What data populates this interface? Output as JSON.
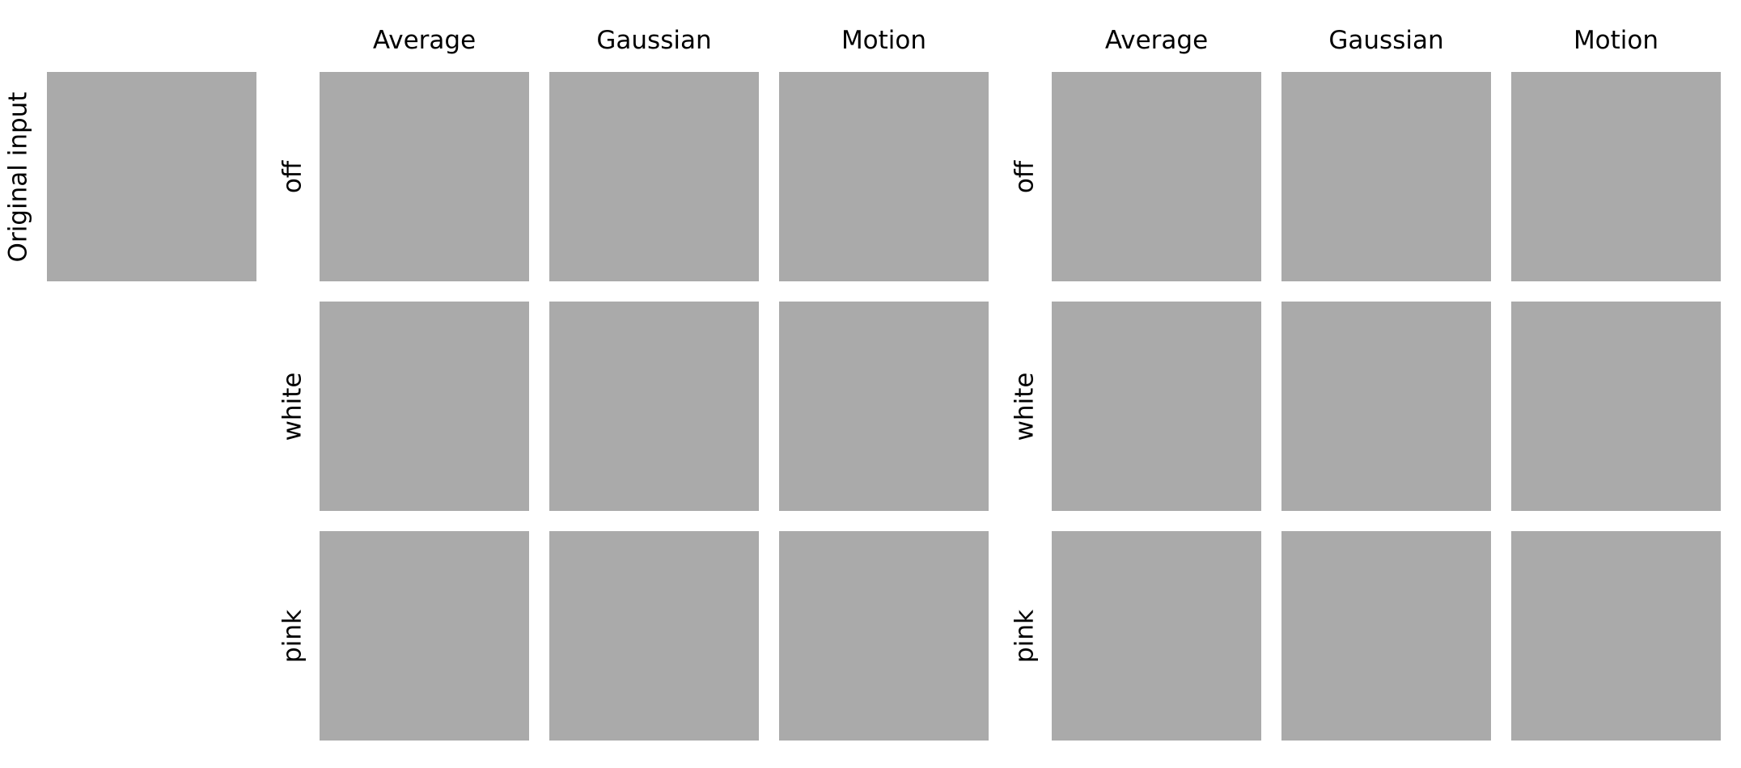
{
  "original": {
    "label": "Original input"
  },
  "groups": [
    {
      "columns": [
        "Average",
        "Gaussian",
        "Motion"
      ],
      "rows": [
        "off",
        "white",
        "pink"
      ]
    },
    {
      "columns": [
        "Average",
        "Gaussian",
        "Motion"
      ],
      "rows": [
        "off",
        "white",
        "pink"
      ]
    }
  ],
  "colors": {
    "panel_fill": "#aaaaaa",
    "background": "#ffffff"
  }
}
